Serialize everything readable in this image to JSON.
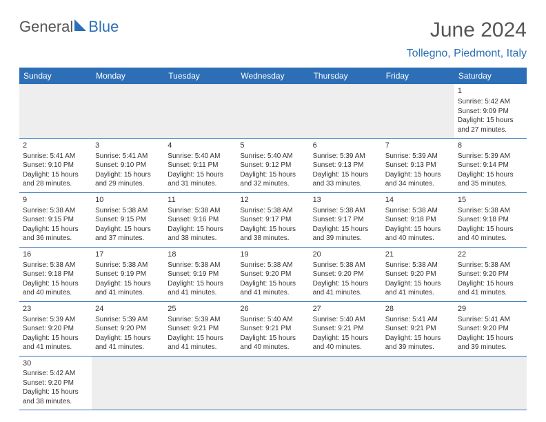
{
  "brand": {
    "part1": "General",
    "part2": "Blue"
  },
  "header": {
    "month_title": "June 2024",
    "location": "Tollegno, Piedmont, Italy"
  },
  "colors": {
    "blue": "#2d6fb6",
    "header_text": "#ffffff",
    "body_text": "#333333",
    "empty_bg": "#eeeeee",
    "page_bg": "#ffffff"
  },
  "day_names": [
    "Sunday",
    "Monday",
    "Tuesday",
    "Wednesday",
    "Thursday",
    "Friday",
    "Saturday"
  ],
  "weeks": [
    [
      null,
      null,
      null,
      null,
      null,
      null,
      {
        "n": "1",
        "sunrise": "Sunrise: 5:42 AM",
        "sunset": "Sunset: 9:09 PM",
        "day1": "Daylight: 15 hours",
        "day2": "and 27 minutes."
      }
    ],
    [
      {
        "n": "2",
        "sunrise": "Sunrise: 5:41 AM",
        "sunset": "Sunset: 9:10 PM",
        "day1": "Daylight: 15 hours",
        "day2": "and 28 minutes."
      },
      {
        "n": "3",
        "sunrise": "Sunrise: 5:41 AM",
        "sunset": "Sunset: 9:10 PM",
        "day1": "Daylight: 15 hours",
        "day2": "and 29 minutes."
      },
      {
        "n": "4",
        "sunrise": "Sunrise: 5:40 AM",
        "sunset": "Sunset: 9:11 PM",
        "day1": "Daylight: 15 hours",
        "day2": "and 31 minutes."
      },
      {
        "n": "5",
        "sunrise": "Sunrise: 5:40 AM",
        "sunset": "Sunset: 9:12 PM",
        "day1": "Daylight: 15 hours",
        "day2": "and 32 minutes."
      },
      {
        "n": "6",
        "sunrise": "Sunrise: 5:39 AM",
        "sunset": "Sunset: 9:13 PM",
        "day1": "Daylight: 15 hours",
        "day2": "and 33 minutes."
      },
      {
        "n": "7",
        "sunrise": "Sunrise: 5:39 AM",
        "sunset": "Sunset: 9:13 PM",
        "day1": "Daylight: 15 hours",
        "day2": "and 34 minutes."
      },
      {
        "n": "8",
        "sunrise": "Sunrise: 5:39 AM",
        "sunset": "Sunset: 9:14 PM",
        "day1": "Daylight: 15 hours",
        "day2": "and 35 minutes."
      }
    ],
    [
      {
        "n": "9",
        "sunrise": "Sunrise: 5:38 AM",
        "sunset": "Sunset: 9:15 PM",
        "day1": "Daylight: 15 hours",
        "day2": "and 36 minutes."
      },
      {
        "n": "10",
        "sunrise": "Sunrise: 5:38 AM",
        "sunset": "Sunset: 9:15 PM",
        "day1": "Daylight: 15 hours",
        "day2": "and 37 minutes."
      },
      {
        "n": "11",
        "sunrise": "Sunrise: 5:38 AM",
        "sunset": "Sunset: 9:16 PM",
        "day1": "Daylight: 15 hours",
        "day2": "and 38 minutes."
      },
      {
        "n": "12",
        "sunrise": "Sunrise: 5:38 AM",
        "sunset": "Sunset: 9:17 PM",
        "day1": "Daylight: 15 hours",
        "day2": "and 38 minutes."
      },
      {
        "n": "13",
        "sunrise": "Sunrise: 5:38 AM",
        "sunset": "Sunset: 9:17 PM",
        "day1": "Daylight: 15 hours",
        "day2": "and 39 minutes."
      },
      {
        "n": "14",
        "sunrise": "Sunrise: 5:38 AM",
        "sunset": "Sunset: 9:18 PM",
        "day1": "Daylight: 15 hours",
        "day2": "and 40 minutes."
      },
      {
        "n": "15",
        "sunrise": "Sunrise: 5:38 AM",
        "sunset": "Sunset: 9:18 PM",
        "day1": "Daylight: 15 hours",
        "day2": "and 40 minutes."
      }
    ],
    [
      {
        "n": "16",
        "sunrise": "Sunrise: 5:38 AM",
        "sunset": "Sunset: 9:18 PM",
        "day1": "Daylight: 15 hours",
        "day2": "and 40 minutes."
      },
      {
        "n": "17",
        "sunrise": "Sunrise: 5:38 AM",
        "sunset": "Sunset: 9:19 PM",
        "day1": "Daylight: 15 hours",
        "day2": "and 41 minutes."
      },
      {
        "n": "18",
        "sunrise": "Sunrise: 5:38 AM",
        "sunset": "Sunset: 9:19 PM",
        "day1": "Daylight: 15 hours",
        "day2": "and 41 minutes."
      },
      {
        "n": "19",
        "sunrise": "Sunrise: 5:38 AM",
        "sunset": "Sunset: 9:20 PM",
        "day1": "Daylight: 15 hours",
        "day2": "and 41 minutes."
      },
      {
        "n": "20",
        "sunrise": "Sunrise: 5:38 AM",
        "sunset": "Sunset: 9:20 PM",
        "day1": "Daylight: 15 hours",
        "day2": "and 41 minutes."
      },
      {
        "n": "21",
        "sunrise": "Sunrise: 5:38 AM",
        "sunset": "Sunset: 9:20 PM",
        "day1": "Daylight: 15 hours",
        "day2": "and 41 minutes."
      },
      {
        "n": "22",
        "sunrise": "Sunrise: 5:38 AM",
        "sunset": "Sunset: 9:20 PM",
        "day1": "Daylight: 15 hours",
        "day2": "and 41 minutes."
      }
    ],
    [
      {
        "n": "23",
        "sunrise": "Sunrise: 5:39 AM",
        "sunset": "Sunset: 9:20 PM",
        "day1": "Daylight: 15 hours",
        "day2": "and 41 minutes."
      },
      {
        "n": "24",
        "sunrise": "Sunrise: 5:39 AM",
        "sunset": "Sunset: 9:20 PM",
        "day1": "Daylight: 15 hours",
        "day2": "and 41 minutes."
      },
      {
        "n": "25",
        "sunrise": "Sunrise: 5:39 AM",
        "sunset": "Sunset: 9:21 PM",
        "day1": "Daylight: 15 hours",
        "day2": "and 41 minutes."
      },
      {
        "n": "26",
        "sunrise": "Sunrise: 5:40 AM",
        "sunset": "Sunset: 9:21 PM",
        "day1": "Daylight: 15 hours",
        "day2": "and 40 minutes."
      },
      {
        "n": "27",
        "sunrise": "Sunrise: 5:40 AM",
        "sunset": "Sunset: 9:21 PM",
        "day1": "Daylight: 15 hours",
        "day2": "and 40 minutes."
      },
      {
        "n": "28",
        "sunrise": "Sunrise: 5:41 AM",
        "sunset": "Sunset: 9:21 PM",
        "day1": "Daylight: 15 hours",
        "day2": "and 39 minutes."
      },
      {
        "n": "29",
        "sunrise": "Sunrise: 5:41 AM",
        "sunset": "Sunset: 9:20 PM",
        "day1": "Daylight: 15 hours",
        "day2": "and 39 minutes."
      }
    ],
    [
      {
        "n": "30",
        "sunrise": "Sunrise: 5:42 AM",
        "sunset": "Sunset: 9:20 PM",
        "day1": "Daylight: 15 hours",
        "day2": "and 38 minutes."
      },
      null,
      null,
      null,
      null,
      null,
      null
    ]
  ]
}
